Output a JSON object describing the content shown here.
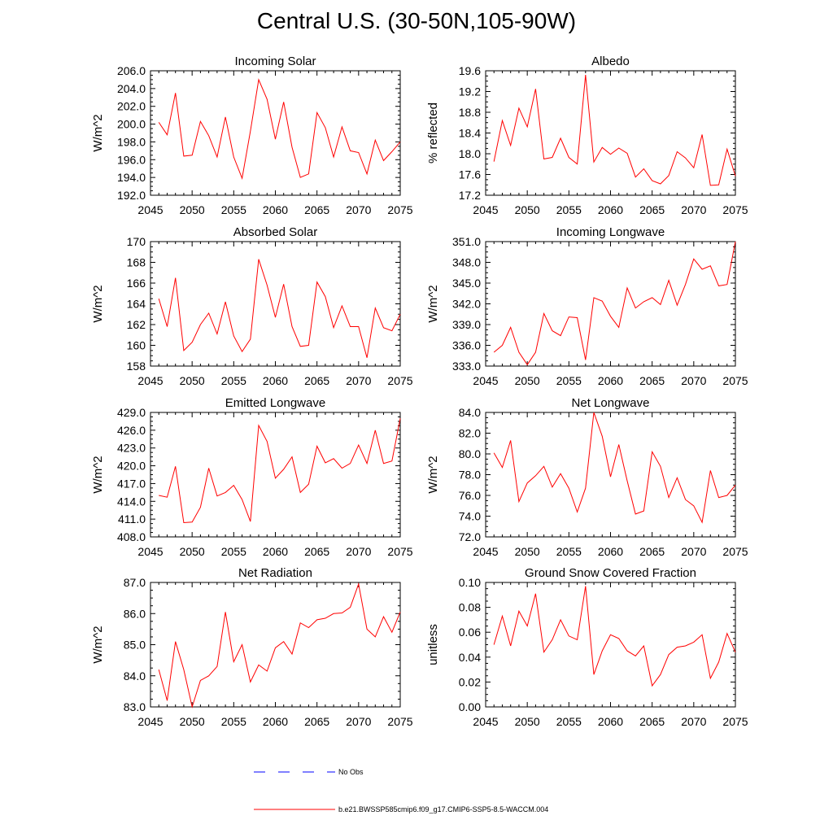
{
  "figure": {
    "title": "Central U.S. (30-50N,105-90W)"
  },
  "legend": {
    "entries": [
      {
        "label": "No Obs",
        "color": "#0000ff",
        "style": "dashed"
      },
      {
        "label": "b.e21.BWSSP585cmip6.f09_g17.CMIP6-SSP5-8.5-WACCM.004",
        "color": "#ff0000",
        "style": "solid"
      }
    ]
  },
  "chart_data": [
    {
      "type": "line",
      "title": "Incoming Solar",
      "ylabel": "W/m^2",
      "xlim": [
        2045,
        2075
      ],
      "ylim": [
        192.0,
        206.0
      ],
      "xticks": [
        "2045",
        "2050",
        "2055",
        "2060",
        "2065",
        "2070",
        "2075"
      ],
      "yticks": [
        "192.0",
        "194.0",
        "196.0",
        "198.0",
        "200.0",
        "202.0",
        "204.0",
        "206.0"
      ],
      "series": [
        {
          "name": "b.e21.BWSSP585cmip6.f09_g17.CMIP6-SSP5-8.5-WACCM.004",
          "x": [
            2046,
            2047,
            2048,
            2049,
            2050,
            2051,
            2052,
            2053,
            2054,
            2055,
            2056,
            2057,
            2058,
            2059,
            2060,
            2061,
            2062,
            2063,
            2064,
            2065,
            2066,
            2067,
            2068,
            2069,
            2070,
            2071,
            2072,
            2073,
            2074,
            2075
          ],
          "values": [
            200.2,
            198.8,
            203.5,
            196.4,
            196.5,
            200.3,
            198.7,
            196.3,
            200.8,
            196.3,
            193.9,
            199.2,
            205.0,
            202.8,
            198.3,
            202.5,
            197.4,
            194.0,
            194.4,
            201.3,
            199.6,
            196.3,
            199.7,
            197.0,
            196.8,
            194.4,
            198.2,
            195.9,
            196.9,
            198.0
          ]
        }
      ]
    },
    {
      "type": "line",
      "title": "Albedo",
      "ylabel": "% reflected",
      "xlim": [
        2045,
        2075
      ],
      "ylim": [
        17.2,
        19.6
      ],
      "xticks": [
        "2045",
        "2050",
        "2055",
        "2060",
        "2065",
        "2070",
        "2075"
      ],
      "yticks": [
        "17.2",
        "17.6",
        "18.0",
        "18.4",
        "18.8",
        "19.2",
        "19.6"
      ],
      "series": [
        {
          "name": "b.e21.BWSSP585cmip6.f09_g17.CMIP6-SSP5-8.5-WACCM.004",
          "x": [
            2046,
            2047,
            2048,
            2049,
            2050,
            2051,
            2052,
            2053,
            2054,
            2055,
            2056,
            2057,
            2058,
            2059,
            2060,
            2061,
            2062,
            2063,
            2064,
            2065,
            2066,
            2067,
            2068,
            2069,
            2070,
            2071,
            2072,
            2073,
            2074,
            2075
          ],
          "values": [
            17.85,
            18.64,
            18.16,
            18.88,
            18.52,
            19.25,
            17.9,
            17.93,
            18.3,
            17.93,
            17.8,
            19.52,
            17.84,
            18.12,
            17.99,
            18.11,
            18.01,
            17.55,
            17.71,
            17.48,
            17.42,
            17.58,
            18.04,
            17.92,
            17.73,
            18.37,
            17.39,
            17.4,
            18.09,
            17.57
          ]
        }
      ]
    },
    {
      "type": "line",
      "title": "Absorbed Solar",
      "ylabel": "W/m^2",
      "xlim": [
        2045,
        2075
      ],
      "ylim": [
        158,
        170
      ],
      "xticks": [
        "2045",
        "2050",
        "2055",
        "2060",
        "2065",
        "2070",
        "2075"
      ],
      "yticks": [
        "158",
        "160",
        "162",
        "164",
        "166",
        "168",
        "170"
      ],
      "series": [
        {
          "name": "b.e21.BWSSP585cmip6.f09_g17.CMIP6-SSP5-8.5-WACCM.004",
          "x": [
            2046,
            2047,
            2048,
            2049,
            2050,
            2051,
            2052,
            2053,
            2054,
            2055,
            2056,
            2057,
            2058,
            2059,
            2060,
            2061,
            2062,
            2063,
            2064,
            2065,
            2066,
            2067,
            2068,
            2069,
            2070,
            2071,
            2072,
            2073,
            2074,
            2075
          ],
          "values": [
            164.5,
            161.8,
            166.5,
            159.5,
            160.3,
            162.0,
            163.1,
            161.1,
            164.2,
            160.9,
            159.4,
            160.6,
            168.3,
            165.8,
            162.7,
            165.9,
            161.8,
            159.9,
            160.0,
            166.1,
            164.7,
            161.7,
            163.8,
            161.8,
            161.8,
            158.8,
            163.6,
            161.7,
            161.4,
            163.0
          ]
        }
      ]
    },
    {
      "type": "line",
      "title": "Incoming Longwave",
      "ylabel": "W/m^2",
      "xlim": [
        2045,
        2075
      ],
      "ylim": [
        333.0,
        351.0
      ],
      "xticks": [
        "2045",
        "2050",
        "2055",
        "2060",
        "2065",
        "2070",
        "2075"
      ],
      "yticks": [
        "333.0",
        "336.0",
        "339.0",
        "342.0",
        "345.0",
        "348.0",
        "351.0"
      ],
      "series": [
        {
          "name": "b.e21.BWSSP585cmip6.f09_g17.CMIP6-SSP5-8.5-WACCM.004",
          "x": [
            2046,
            2047,
            2048,
            2049,
            2050,
            2051,
            2052,
            2053,
            2054,
            2055,
            2056,
            2057,
            2058,
            2059,
            2060,
            2061,
            2062,
            2063,
            2064,
            2065,
            2066,
            2067,
            2068,
            2069,
            2070,
            2071,
            2072,
            2073,
            2074,
            2075
          ],
          "values": [
            335.0,
            336.0,
            338.6,
            335.0,
            333.2,
            335.0,
            340.6,
            338.1,
            337.4,
            340.1,
            340.0,
            333.9,
            342.9,
            342.4,
            340.2,
            338.6,
            344.3,
            341.4,
            342.3,
            342.9,
            341.9,
            345.4,
            341.8,
            344.8,
            348.5,
            347.0,
            347.5,
            344.6,
            344.8,
            351.0
          ]
        }
      ]
    },
    {
      "type": "line",
      "title": "Emitted Longwave",
      "ylabel": "W/m^2",
      "xlim": [
        2045,
        2075
      ],
      "ylim": [
        408.0,
        429.0
      ],
      "xticks": [
        "2045",
        "2050",
        "2055",
        "2060",
        "2065",
        "2070",
        "2075"
      ],
      "yticks": [
        "408.0",
        "411.0",
        "414.0",
        "417.0",
        "420.0",
        "423.0",
        "426.0",
        "429.0"
      ],
      "series": [
        {
          "name": "b.e21.BWSSP585cmip6.f09_g17.CMIP6-SSP5-8.5-WACCM.004",
          "x": [
            2046,
            2047,
            2048,
            2049,
            2050,
            2051,
            2052,
            2053,
            2054,
            2055,
            2056,
            2057,
            2058,
            2059,
            2060,
            2061,
            2062,
            2063,
            2064,
            2065,
            2066,
            2067,
            2068,
            2069,
            2070,
            2071,
            2072,
            2073,
            2074,
            2075
          ],
          "values": [
            415.0,
            414.7,
            419.9,
            410.4,
            410.5,
            413.0,
            419.6,
            414.9,
            415.5,
            416.7,
            414.3,
            410.6,
            426.8,
            424.1,
            417.9,
            419.4,
            421.5,
            415.5,
            416.9,
            423.3,
            420.5,
            421.2,
            419.6,
            420.4,
            423.5,
            420.4,
            426.0,
            420.4,
            420.8,
            428.0
          ]
        }
      ]
    },
    {
      "type": "line",
      "title": "Net Longwave",
      "ylabel": "W/m^2",
      "xlim": [
        2045,
        2075
      ],
      "ylim": [
        72.0,
        84.0
      ],
      "xticks": [
        "2045",
        "2050",
        "2055",
        "2060",
        "2065",
        "2070",
        "2075"
      ],
      "yticks": [
        "72.0",
        "74.0",
        "76.0",
        "78.0",
        "80.0",
        "82.0",
        "84.0"
      ],
      "series": [
        {
          "name": "b.e21.BWSSP585cmip6.f09_g17.CMIP6-SSP5-8.5-WACCM.004",
          "x": [
            2046,
            2047,
            2048,
            2049,
            2050,
            2051,
            2052,
            2053,
            2054,
            2055,
            2056,
            2057,
            2058,
            2059,
            2060,
            2061,
            2062,
            2063,
            2064,
            2065,
            2066,
            2067,
            2068,
            2069,
            2070,
            2071,
            2072,
            2073,
            2074,
            2075
          ],
          "values": [
            80.1,
            78.7,
            81.3,
            75.4,
            77.2,
            77.9,
            78.8,
            76.8,
            78.1,
            76.7,
            74.4,
            76.7,
            84.0,
            81.7,
            77.8,
            80.9,
            77.4,
            74.2,
            74.5,
            80.2,
            78.8,
            75.8,
            77.7,
            75.6,
            75.0,
            73.4,
            78.4,
            75.8,
            76.0,
            77.0
          ]
        }
      ]
    },
    {
      "type": "line",
      "title": "Net Radiation",
      "ylabel": "W/m^2",
      "xlim": [
        2045,
        2075
      ],
      "ylim": [
        83.0,
        87.0
      ],
      "xticks": [
        "2045",
        "2050",
        "2055",
        "2060",
        "2065",
        "2070",
        "2075"
      ],
      "yticks": [
        "83.0",
        "84.0",
        "85.0",
        "86.0",
        "87.0"
      ],
      "series": [
        {
          "name": "b.e21.BWSSP585cmip6.f09_g17.CMIP6-SSP5-8.5-WACCM.004",
          "x": [
            2046,
            2047,
            2048,
            2049,
            2050,
            2051,
            2052,
            2053,
            2054,
            2055,
            2056,
            2057,
            2058,
            2059,
            2060,
            2061,
            2062,
            2063,
            2064,
            2065,
            2066,
            2067,
            2068,
            2069,
            2070,
            2071,
            2072,
            2073,
            2074,
            2075
          ],
          "values": [
            84.2,
            83.2,
            85.1,
            84.2,
            83.0,
            83.85,
            84.0,
            84.3,
            86.05,
            84.45,
            85.0,
            83.8,
            84.35,
            84.15,
            84.9,
            85.1,
            84.7,
            85.7,
            85.55,
            85.8,
            85.85,
            86.0,
            86.02,
            86.2,
            86.95,
            85.5,
            85.25,
            85.9,
            85.4,
            86.05
          ]
        }
      ]
    },
    {
      "type": "line",
      "title": "Ground Snow Covered Fraction",
      "ylabel": "unitless",
      "xlim": [
        2045,
        2075
      ],
      "ylim": [
        0.0,
        0.1
      ],
      "xticks": [
        "2045",
        "2050",
        "2055",
        "2060",
        "2065",
        "2070",
        "2075"
      ],
      "yticks": [
        "0.00",
        "0.02",
        "0.04",
        "0.06",
        "0.08",
        "0.10"
      ],
      "series": [
        {
          "name": "b.e21.BWSSP585cmip6.f09_g17.CMIP6-SSP5-8.5-WACCM.004",
          "x": [
            2046,
            2047,
            2048,
            2049,
            2050,
            2051,
            2052,
            2053,
            2054,
            2055,
            2056,
            2057,
            2058,
            2059,
            2060,
            2061,
            2062,
            2063,
            2064,
            2065,
            2066,
            2067,
            2068,
            2069,
            2070,
            2071,
            2072,
            2073,
            2074,
            2075
          ],
          "values": [
            0.05,
            0.073,
            0.049,
            0.077,
            0.065,
            0.091,
            0.044,
            0.054,
            0.07,
            0.057,
            0.054,
            0.097,
            0.026,
            0.045,
            0.058,
            0.055,
            0.045,
            0.041,
            0.049,
            0.017,
            0.026,
            0.042,
            0.048,
            0.049,
            0.052,
            0.058,
            0.023,
            0.036,
            0.059,
            0.044
          ]
        }
      ]
    }
  ]
}
